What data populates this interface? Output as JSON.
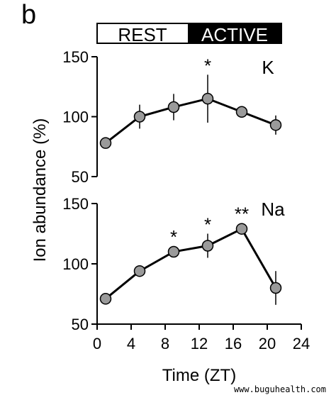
{
  "panel_letter": "b",
  "phase_bar": {
    "rest_label": "REST",
    "active_label": "ACTIVE",
    "rest_range": [
      0,
      12
    ],
    "active_range": [
      12,
      24
    ]
  },
  "y_axis_label": "Ion abundance (%)",
  "x_axis_label": "Time (ZT)",
  "watermark": "www.buguhealth.com",
  "colors": {
    "marker_fill": "#9a9a9a",
    "line": "#000000",
    "active_fill": "#000000",
    "rest_fill": "#ffffff"
  },
  "chart_data": [
    {
      "type": "line",
      "series_label": "K",
      "x": [
        1,
        5,
        9,
        13,
        17,
        21
      ],
      "y": [
        78,
        100,
        108,
        115,
        104,
        93
      ],
      "error": [
        0,
        10,
        11,
        20,
        0,
        8
      ],
      "significance": [
        "",
        "",
        "",
        "*",
        "",
        ""
      ],
      "ylim": [
        50,
        150
      ],
      "yticks": [
        50,
        100,
        150
      ],
      "xlim": [
        0,
        24
      ]
    },
    {
      "type": "line",
      "series_label": "Na",
      "x": [
        1,
        5,
        9,
        13,
        17,
        21
      ],
      "y": [
        71,
        94,
        110,
        115,
        129,
        80
      ],
      "error": [
        0,
        4,
        0,
        10,
        0,
        14
      ],
      "significance": [
        "",
        "",
        "*",
        "*",
        "**",
        ""
      ],
      "ylim": [
        50,
        150
      ],
      "yticks": [
        50,
        100,
        150
      ],
      "xticks": [
        0,
        4,
        8,
        12,
        16,
        20,
        24
      ],
      "xlim": [
        0,
        24
      ]
    }
  ]
}
